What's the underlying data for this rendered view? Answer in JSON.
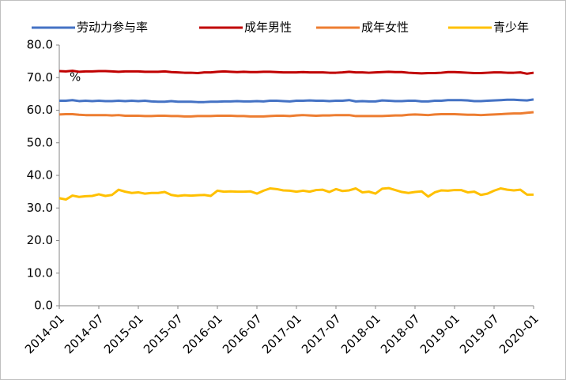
{
  "chart_data": {
    "type": "line",
    "annotation": "%",
    "categories": [
      "2014-01",
      null,
      null,
      null,
      null,
      null,
      "2014-07",
      null,
      null,
      null,
      null,
      null,
      "2015-01",
      null,
      null,
      null,
      null,
      null,
      "2015-07",
      null,
      null,
      null,
      null,
      null,
      "2016-01",
      null,
      null,
      null,
      null,
      null,
      "2016-07",
      null,
      null,
      null,
      null,
      null,
      "2017-01",
      null,
      null,
      null,
      null,
      null,
      "2017-07",
      null,
      null,
      null,
      null,
      null,
      "2018-01",
      null,
      null,
      null,
      null,
      null,
      "2018-07",
      null,
      null,
      null,
      null,
      null,
      "2019-01",
      null,
      null,
      null,
      null,
      null,
      "2019-07",
      null,
      null,
      null,
      null,
      null,
      "2020-01"
    ],
    "series": [
      {
        "name": "劳动力参与率",
        "color": "#4472c4",
        "values": [
          62.9,
          62.9,
          63.1,
          62.8,
          62.9,
          62.8,
          62.9,
          62.8,
          62.8,
          62.9,
          62.8,
          62.9,
          62.8,
          62.9,
          62.7,
          62.6,
          62.6,
          62.8,
          62.6,
          62.6,
          62.6,
          62.5,
          62.5,
          62.6,
          62.6,
          62.7,
          62.7,
          62.8,
          62.7,
          62.7,
          62.8,
          62.7,
          62.9,
          62.9,
          62.8,
          62.7,
          62.9,
          62.9,
          63.0,
          62.9,
          62.9,
          62.8,
          62.9,
          62.9,
          63.1,
          62.7,
          62.8,
          62.7,
          62.7,
          63.0,
          62.9,
          62.8,
          62.8,
          62.9,
          62.9,
          62.7,
          62.7,
          62.9,
          62.9,
          63.1,
          63.1,
          63.1,
          63.0,
          62.8,
          62.8,
          62.9,
          63.0,
          63.1,
          63.2,
          63.2,
          63.1,
          63.0,
          63.3
        ]
      },
      {
        "name": "成年男性",
        "color": "#c00000",
        "values": [
          72.0,
          71.9,
          72.1,
          71.8,
          71.9,
          71.9,
          72.0,
          72.0,
          71.9,
          71.8,
          71.9,
          71.9,
          71.9,
          71.8,
          71.8,
          71.8,
          71.9,
          71.7,
          71.6,
          71.5,
          71.5,
          71.4,
          71.6,
          71.6,
          71.8,
          71.9,
          71.8,
          71.7,
          71.8,
          71.7,
          71.7,
          71.8,
          71.8,
          71.7,
          71.6,
          71.6,
          71.6,
          71.7,
          71.6,
          71.6,
          71.6,
          71.5,
          71.5,
          71.6,
          71.8,
          71.6,
          71.6,
          71.5,
          71.6,
          71.7,
          71.8,
          71.7,
          71.7,
          71.5,
          71.4,
          71.3,
          71.4,
          71.4,
          71.5,
          71.7,
          71.7,
          71.6,
          71.5,
          71.4,
          71.4,
          71.5,
          71.6,
          71.6,
          71.5,
          71.5,
          71.6,
          71.2,
          71.5
        ]
      },
      {
        "name": "成年女性",
        "color": "#ed7d31",
        "values": [
          58.7,
          58.8,
          58.8,
          58.6,
          58.5,
          58.5,
          58.5,
          58.5,
          58.4,
          58.5,
          58.3,
          58.3,
          58.3,
          58.2,
          58.2,
          58.3,
          58.3,
          58.2,
          58.2,
          58.1,
          58.1,
          58.2,
          58.2,
          58.2,
          58.3,
          58.3,
          58.3,
          58.2,
          58.2,
          58.1,
          58.1,
          58.1,
          58.2,
          58.3,
          58.3,
          58.2,
          58.4,
          58.5,
          58.4,
          58.3,
          58.4,
          58.4,
          58.5,
          58.5,
          58.5,
          58.2,
          58.2,
          58.2,
          58.2,
          58.2,
          58.3,
          58.4,
          58.4,
          58.6,
          58.7,
          58.6,
          58.5,
          58.7,
          58.8,
          58.8,
          58.8,
          58.7,
          58.6,
          58.6,
          58.5,
          58.6,
          58.7,
          58.8,
          58.9,
          59.0,
          59.0,
          59.2,
          59.4
        ]
      },
      {
        "name": "青少年",
        "color": "#ffc000",
        "values": [
          33.0,
          32.6,
          33.8,
          33.4,
          33.6,
          33.7,
          34.2,
          33.7,
          34.0,
          35.6,
          35.0,
          34.6,
          34.8,
          34.4,
          34.6,
          34.6,
          34.9,
          34.0,
          33.7,
          33.9,
          33.8,
          33.9,
          34.0,
          33.7,
          35.3,
          35.0,
          35.1,
          35.0,
          35.0,
          35.1,
          34.4,
          35.3,
          36.0,
          35.8,
          35.4,
          35.3,
          35.0,
          35.3,
          35.0,
          35.5,
          35.6,
          34.9,
          35.8,
          35.2,
          35.4,
          36.0,
          34.8,
          35.0,
          34.4,
          35.9,
          36.1,
          35.5,
          34.9,
          34.6,
          34.9,
          35.1,
          33.5,
          34.8,
          35.4,
          35.3,
          35.5,
          35.5,
          34.8,
          35.0,
          34.0,
          34.4,
          35.3,
          36.0,
          35.6,
          35.4,
          35.6,
          34.1,
          34.1
        ]
      }
    ],
    "ylim": [
      0,
      80
    ],
    "yticks": [
      {
        "value": 0,
        "label": "0.0"
      },
      {
        "value": 10,
        "label": "10.0"
      },
      {
        "value": 20,
        "label": "20.0"
      },
      {
        "value": 30,
        "label": "30.0"
      },
      {
        "value": 40,
        "label": "40.0"
      },
      {
        "value": 50,
        "label": "50.0"
      },
      {
        "value": 60,
        "label": "60.0"
      },
      {
        "value": 70,
        "label": "70.0"
      },
      {
        "value": 80,
        "label": "80.0"
      }
    ],
    "grid": false,
    "legend": "top"
  }
}
